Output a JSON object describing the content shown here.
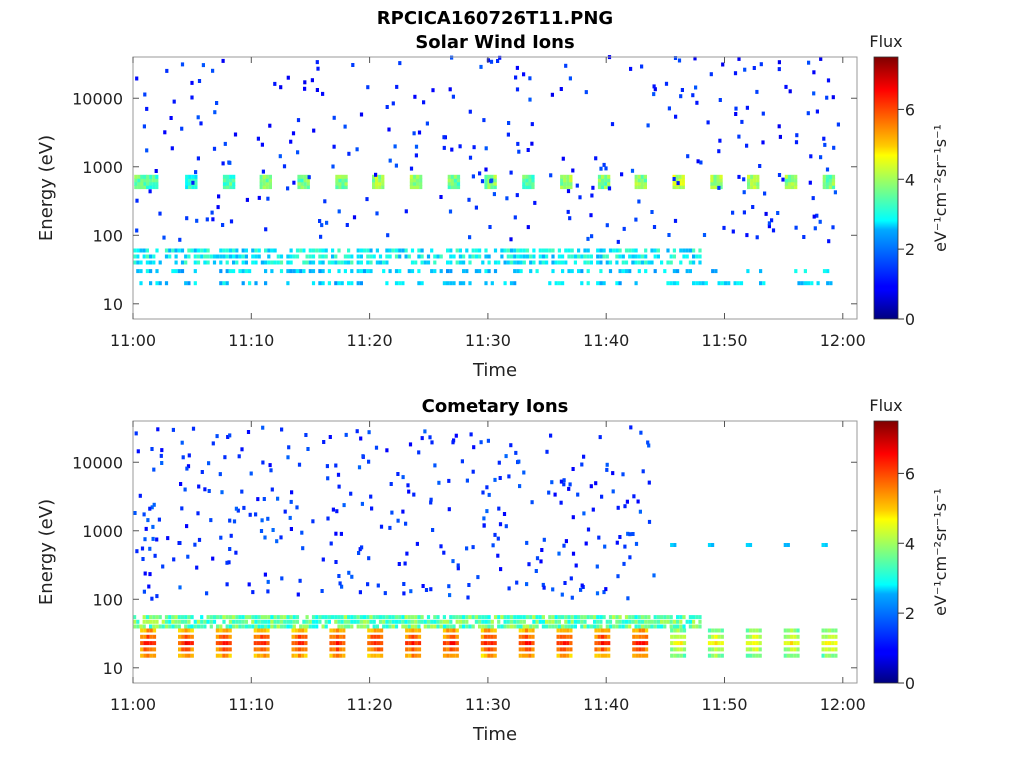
{
  "figure_title": "RPCICA160726T11.PNG",
  "colorbar": {
    "title": "Flux",
    "label": "eV⁻¹cm⁻²sr⁻¹s⁻¹",
    "range": [
      0,
      7.5
    ],
    "ticks": [
      "0",
      "2",
      "4",
      "6"
    ],
    "colormap": "jet"
  },
  "chart_data": [
    {
      "type": "heatmap",
      "title": "Solar Wind Ions",
      "xlabel": "Time",
      "ylabel": "Energy (eV)",
      "xlim": [
        "11:00",
        "12:01"
      ],
      "ylim": [
        6,
        40000
      ],
      "yscale": "log",
      "xticks": [
        "11:00",
        "11:10",
        "11:20",
        "11:30",
        "11:40",
        "11:50",
        "12:00"
      ],
      "yticks": [
        "10",
        "100",
        "1000",
        "10000"
      ],
      "description_series": [
        {
          "name": "",
          "points": [
            {
              "t": "11:00.5",
              "e": 600,
              "flux": 3.5
            },
            {
              "t": "11:01.5",
              "e": 600,
              "flux": 3.3
            },
            {
              "t": "11:04.8",
              "e": 600,
              "flux": 3.0
            },
            {
              "t": "11:08.0",
              "e": 600,
              "flux": 3.4
            },
            {
              "t": "11:11.1",
              "e": 600,
              "flux": 3.8
            },
            {
              "t": "11:14.3",
              "e": 600,
              "flux": 3.6
            },
            {
              "t": "11:17.5",
              "e": 600,
              "flux": 3.7
            },
            {
              "t": "11:20.6",
              "e": 600,
              "flux": 4.0
            },
            {
              "t": "11:23.8",
              "e": 600,
              "flux": 3.9
            },
            {
              "t": "11:27.0",
              "e": 600,
              "flux": 3.6
            },
            {
              "t": "11:30.1",
              "e": 600,
              "flux": 3.8
            },
            {
              "t": "11:33.3",
              "e": 600,
              "flux": 3.4
            },
            {
              "t": "11:36.5",
              "e": 600,
              "flux": 3.9
            },
            {
              "t": "11:39.7",
              "e": 600,
              "flux": 3.7
            },
            {
              "t": "11:42.8",
              "e": 600,
              "flux": 3.8
            },
            {
              "t": "11:46.0",
              "e": 600,
              "flux": 4.2
            },
            {
              "t": "11:49.2",
              "e": 600,
              "flux": 4.0
            },
            {
              "t": "11:52.3",
              "e": 600,
              "flux": 4.1
            },
            {
              "t": "11:55.5",
              "e": 600,
              "flux": 3.8
            },
            {
              "t": "11:58.7",
              "e": 600,
              "flux": 3.7
            }
          ]
        },
        {
          "name": "",
          "e_band": [
            40,
            60
          ],
          "t_range": [
            "11:00",
            "11:48"
          ],
          "flux": 2.8
        },
        {
          "name": "",
          "e_band": [
            20,
            30
          ],
          "t_range": [
            "11:00",
            "11:59"
          ],
          "flux": 2.5
        }
      ]
    },
    {
      "type": "heatmap",
      "title": "Cometary Ions",
      "xlabel": "Time",
      "ylabel": "Energy (eV)",
      "xlim": [
        "11:00",
        "12:01"
      ],
      "ylim": [
        6,
        40000
      ],
      "yscale": "log",
      "xticks": [
        "11:00",
        "11:10",
        "11:20",
        "11:30",
        "11:40",
        "11:50",
        "12:00"
      ],
      "yticks": [
        "10",
        "100",
        "1000",
        "10000"
      ],
      "description_series": [
        {
          "name": "",
          "e_band": [
            40,
            55
          ],
          "t_range": [
            "11:00",
            "11:48"
          ],
          "flux": 3.5
        },
        {
          "name": "",
          "e_band": [
            15,
            35
          ],
          "t_range": [
            "11:00",
            "12:00"
          ],
          "flux": 5.5,
          "period_min": 3.2
        },
        {
          "name": "",
          "e_band": [
            600,
            650
          ],
          "t_range": [
            "11:45",
            "12:00"
          ],
          "flux": 2.2
        },
        {
          "name": "",
          "e_band": [
            100,
            30000
          ],
          "t_range": [
            "11:00",
            "11:44"
          ],
          "flux": 1.3
        }
      ]
    }
  ]
}
